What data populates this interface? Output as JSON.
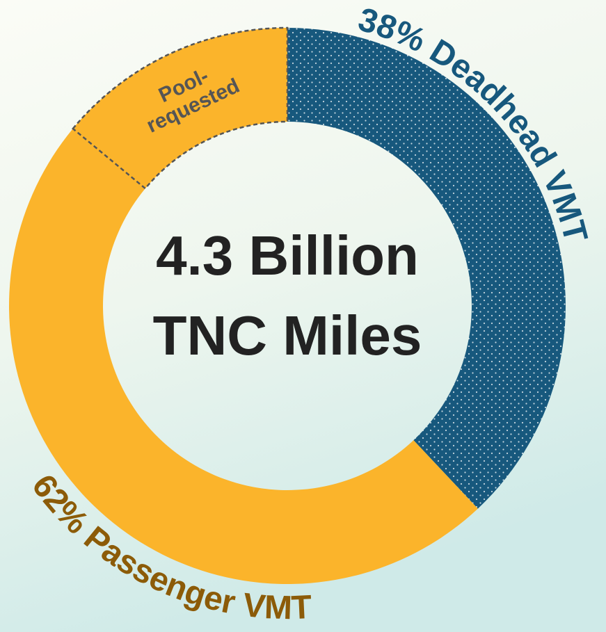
{
  "chart_data": {
    "type": "donut",
    "center_text": [
      "4.3 Billion",
      "TNC Miles"
    ],
    "categories": [
      "Deadhead VMT",
      "Passenger VMT"
    ],
    "values": [
      38,
      62
    ],
    "value_labels": [
      "38%",
      "62%"
    ],
    "colors": [
      "#17587d",
      "#fbb42b"
    ],
    "label_colors": [
      "#17587d",
      "#8c5b08"
    ],
    "subsegment": {
      "label": [
        "Pool-",
        "requested"
      ],
      "value": 14,
      "parent": 1
    }
  }
}
